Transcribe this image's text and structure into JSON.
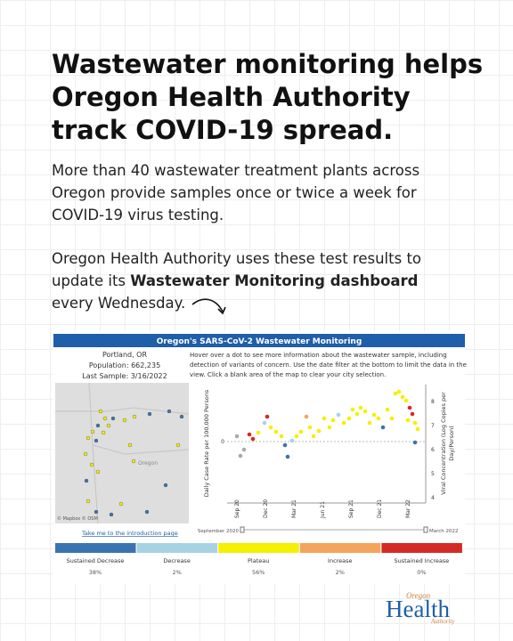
{
  "title": [
    "Wastewater monitoring helps",
    "Oregon Health Authority",
    "track COVID-19 spread."
  ],
  "paragraph1": [
    "More than 40 wastewater treatment plants across",
    "Oregon provide samples once or twice a week for",
    "COVID-19 virus testing."
  ],
  "paragraph2": {
    "line1": "Oregon Health Authority uses these test results to",
    "line2_start": "update its ",
    "line2_bold": "Wastewater Monitoring dashboard",
    "line3": "every Wednesday."
  },
  "dashboard": {
    "title": "Oregon's SARS-CoV-2 Wastewater Monitoring",
    "location": "Portland, OR",
    "population": "Population: 662,235",
    "last_sample": "Last Sample: 3/16/2022",
    "instructions": [
      "Hover over a dot to see more information about the wastewater sample, including",
      "detection of variants of concern. Use the date filter at the bottom to limit the data in the",
      "view. Click a blank area of the map to clear your city selection."
    ],
    "map_label": "Oregon",
    "map_credit": "© Mapbox © OSM",
    "y_axis_label": "Daily Case Rate per 100,000 Persons",
    "y_tick": "0",
    "y2_axis_label": [
      "Viral Concentration (Log Copies per",
      "Day/Person)"
    ],
    "y2_ticks": [
      "8",
      "7",
      "6",
      "5",
      "4"
    ],
    "x_ticks": [
      "Sep 20",
      "Dec 20",
      "Mar 21",
      "Jun 21",
      "Sep 21",
      "Dec 21",
      "Mar 22"
    ],
    "link": "Take me to the introduction page",
    "slider_start": "September 2020",
    "slider_end": "March 2022",
    "legend": [
      {
        "label": "Sustained Decrease",
        "percent": "38%"
      },
      {
        "label": "Decrease",
        "percent": "2%"
      },
      {
        "label": "Plateau",
        "percent": "56%"
      },
      {
        "label": "Increase",
        "percent": "2%"
      },
      {
        "label": "Sustained Increase",
        "percent": "0%"
      }
    ]
  },
  "logo": {
    "top": "Oregon",
    "main": "Health",
    "bottom": "Authority"
  }
}
